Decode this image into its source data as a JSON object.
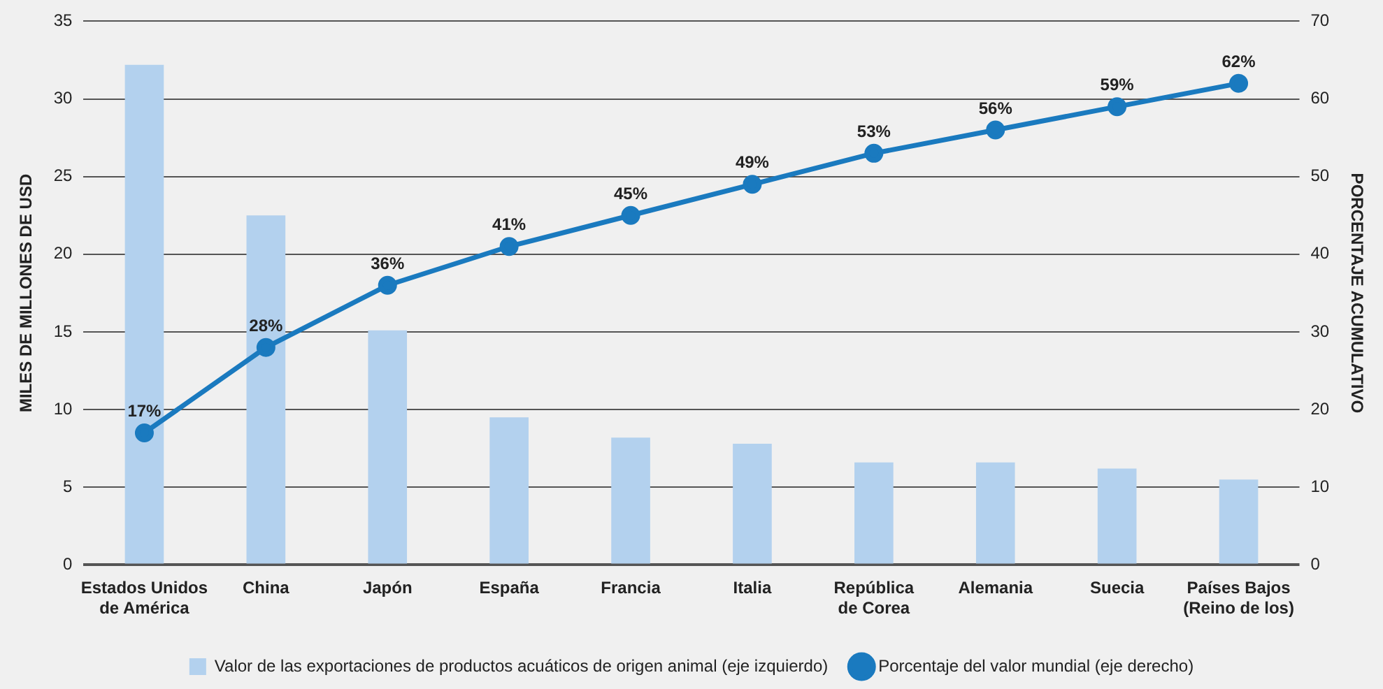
{
  "chart_data": {
    "type": "bar",
    "ylabel": "MILES DE MILLONES DE USD",
    "y2label": "PORCENTAJE ACUMULATIVO",
    "categories": [
      "Estados Unidos de América",
      "China",
      "Japón",
      "España",
      "Francia",
      "Italia",
      "República de Corea",
      "Alemania",
      "Suecia",
      "Países Bajos (Reino de los)"
    ],
    "series": [
      {
        "name": "Valor de las exportaciones de productos acuáticos de origen animal (eje izquierdo)",
        "color": "#b3d1ee",
        "values": [
          32.2,
          22.5,
          15.1,
          9.5,
          8.2,
          7.8,
          6.6,
          6.6,
          6.2,
          5.5
        ]
      },
      {
        "name": "Porcentaje del valor mundial (eje derecho)",
        "type": "line",
        "axis": "y2",
        "color": "#1a7abf",
        "marker": "circle",
        "values": [
          17,
          28,
          36,
          41,
          45,
          49,
          53,
          56,
          59,
          62
        ],
        "value_labels": [
          "17%",
          "28%",
          "36%",
          "41%",
          "45%",
          "49%",
          "53%",
          "56%",
          "59%",
          "62%"
        ]
      }
    ],
    "ylim": [
      0,
      35
    ],
    "yticks": [
      0,
      5,
      10,
      15,
      20,
      25,
      30,
      35
    ],
    "y2lim": [
      0,
      70
    ],
    "y2ticks": [
      0,
      10,
      20,
      30,
      40,
      50,
      60,
      70
    ],
    "grid": "y",
    "legend": "bottom"
  }
}
